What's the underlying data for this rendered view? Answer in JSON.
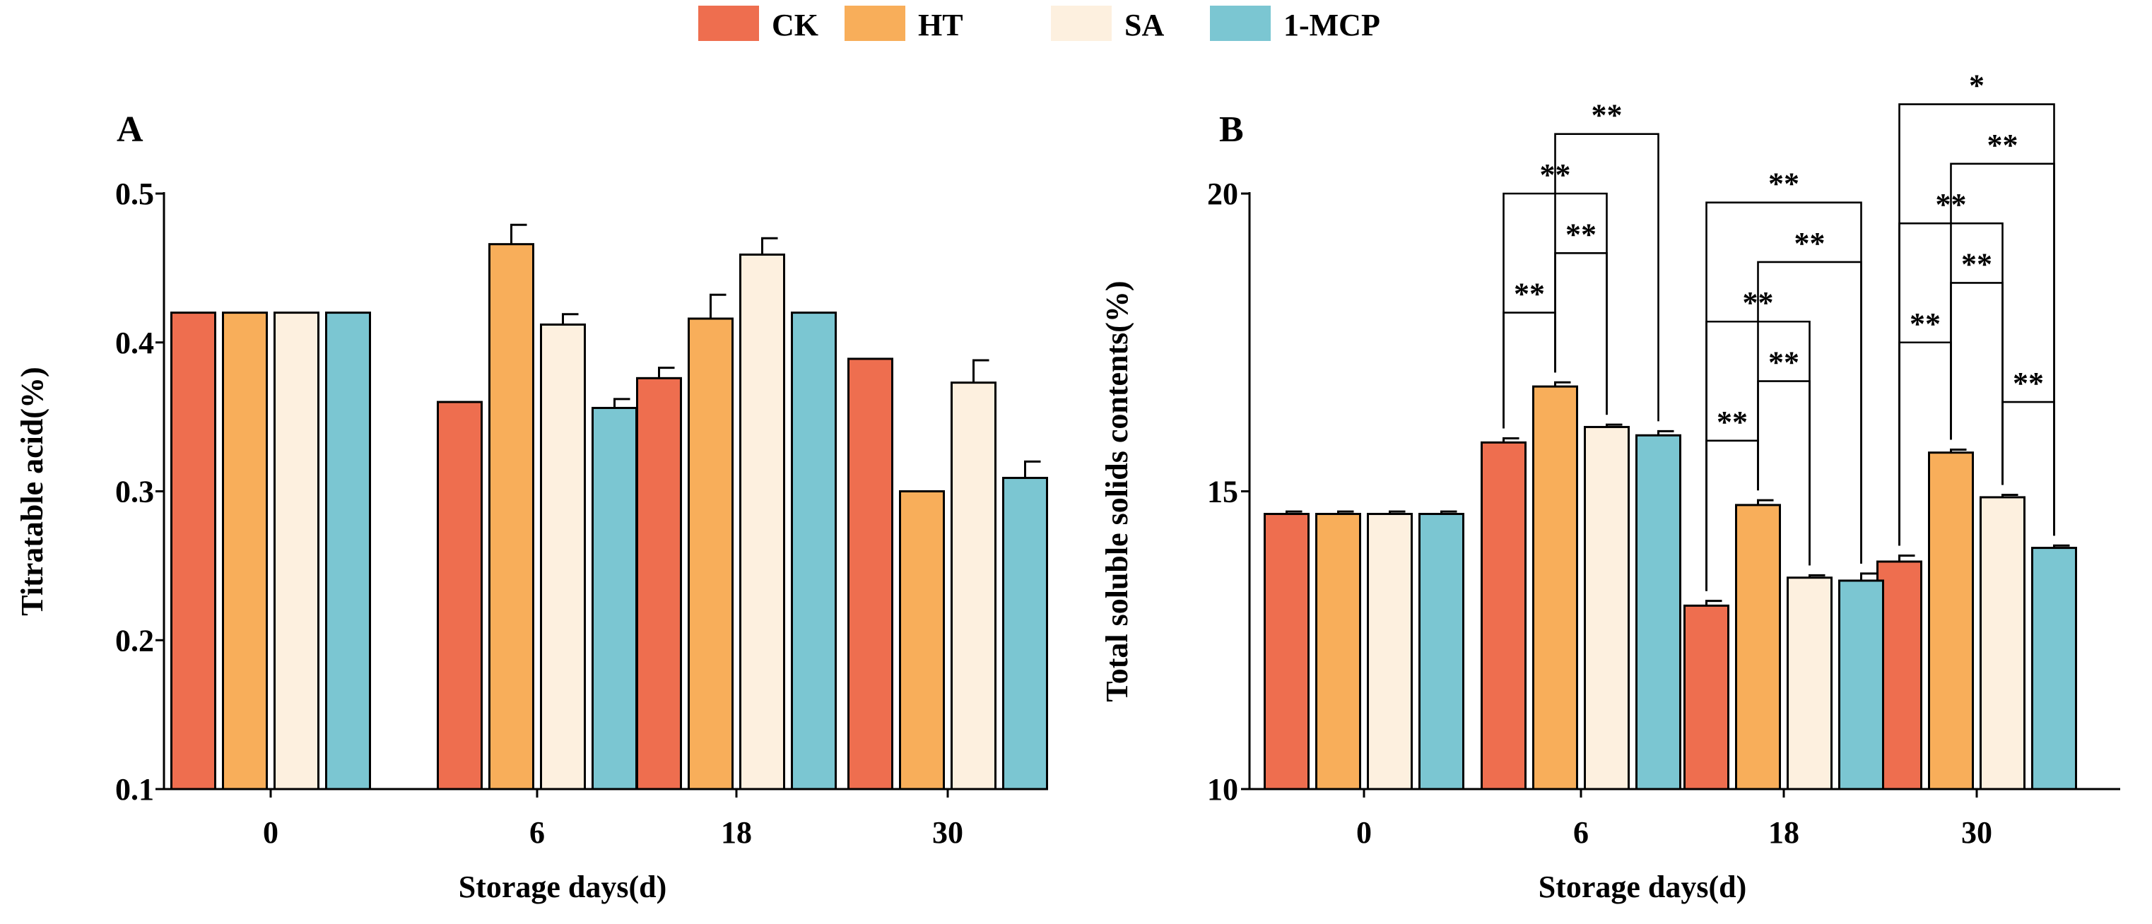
{
  "legend": [
    {
      "label": "CK",
      "color": "#EE6E4F"
    },
    {
      "label": "HT",
      "color": "#F8AE5A"
    },
    {
      "label": "SA",
      "color": "#FDF0DF"
    },
    {
      "label": "1-MCP",
      "color": "#7BC6D2"
    }
  ],
  "chart_data": [
    {
      "panel_label": "A",
      "type": "bar",
      "title": "",
      "xlabel": "Storage days(d)",
      "ylabel": "Titratable acid(%)",
      "categories": [
        "0",
        "6",
        "18",
        "30"
      ],
      "ylim": [
        0.1,
        0.5
      ],
      "yticks": [
        "0.1",
        "0.2",
        "0.3",
        "0.4",
        "0.5"
      ],
      "grid": false,
      "series": [
        {
          "name": "CK",
          "color": "#EE6E4F",
          "values": [
            0.42,
            0.36,
            0.376,
            0.389
          ],
          "errors": [
            0,
            0,
            0.007,
            0
          ]
        },
        {
          "name": "HT",
          "color": "#F8AE5A",
          "values": [
            0.42,
            0.466,
            0.416,
            0.3
          ],
          "errors": [
            0,
            0.013,
            0.016,
            0
          ]
        },
        {
          "name": "SA",
          "color": "#FDF0DF",
          "values": [
            0.42,
            0.412,
            0.459,
            0.373
          ],
          "errors": [
            0,
            0.007,
            0.011,
            0.015
          ]
        },
        {
          "name": "1-MCP",
          "color": "#7BC6D2",
          "values": [
            0.42,
            0.356,
            0.42,
            0.309
          ],
          "errors": [
            0,
            0.006,
            0,
            0.011
          ]
        }
      ],
      "significance": []
    },
    {
      "panel_label": "B",
      "type": "bar",
      "title": "",
      "xlabel": "Storage days(d)",
      "ylabel": "Total soluble solids contents(%)",
      "categories": [
        "0",
        "6",
        "18",
        "30"
      ],
      "ylim": [
        10,
        20
      ],
      "yticks": [
        "10",
        "15",
        "20"
      ],
      "grid": false,
      "series": [
        {
          "name": "CK",
          "color": "#EE6E4F",
          "values": [
            14.62,
            15.82,
            13.08,
            13.82
          ],
          "errors": [
            0.04,
            0.07,
            0.08,
            0.1
          ]
        },
        {
          "name": "HT",
          "color": "#F8AE5A",
          "values": [
            14.62,
            16.76,
            14.77,
            15.65
          ],
          "errors": [
            0.04,
            0.07,
            0.08,
            0.05
          ]
        },
        {
          "name": "SA",
          "color": "#FDF0DF",
          "values": [
            14.62,
            16.08,
            13.55,
            14.9
          ],
          "errors": [
            0.04,
            0.04,
            0.04,
            0.04
          ]
        },
        {
          "name": "1-MCP",
          "color": "#7BC6D2",
          "values": [
            14.62,
            15.94,
            13.5,
            14.05
          ],
          "errors": [
            0.04,
            0.07,
            0.12,
            0.04
          ]
        }
      ],
      "significance": [
        {
          "category": 1,
          "from": 0,
          "to": 1,
          "level": 18,
          "label": "**"
        },
        {
          "category": 1,
          "from": 1,
          "to": 2,
          "level": 19,
          "label": "**"
        },
        {
          "category": 1,
          "from": 0,
          "to": 2,
          "level": 20,
          "label": "**"
        },
        {
          "category": 1,
          "from": 1,
          "to": 3,
          "level": 21,
          "label": "**"
        },
        {
          "category": 2,
          "from": 0,
          "to": 1,
          "level": 15.85,
          "label": "**"
        },
        {
          "category": 2,
          "from": 1,
          "to": 2,
          "level": 16.85,
          "label": "**"
        },
        {
          "category": 2,
          "from": 0,
          "to": 2,
          "level": 17.85,
          "label": "**"
        },
        {
          "category": 2,
          "from": 1,
          "to": 3,
          "level": 18.85,
          "label": "**"
        },
        {
          "category": 2,
          "from": 0,
          "to": 3,
          "level": 19.85,
          "label": "**"
        },
        {
          "category": 3,
          "from": 2,
          "to": 3,
          "level": 16.5,
          "label": "**"
        },
        {
          "category": 3,
          "from": 0,
          "to": 1,
          "level": 17.5,
          "label": "**"
        },
        {
          "category": 3,
          "from": 1,
          "to": 2,
          "level": 18.5,
          "label": "**"
        },
        {
          "category": 3,
          "from": 0,
          "to": 2,
          "level": 19.5,
          "label": "**"
        },
        {
          "category": 3,
          "from": 1,
          "to": 3,
          "level": 20.5,
          "label": "**"
        },
        {
          "category": 3,
          "from": 0,
          "to": 3,
          "level": 21.5,
          "label": "*"
        }
      ]
    }
  ]
}
